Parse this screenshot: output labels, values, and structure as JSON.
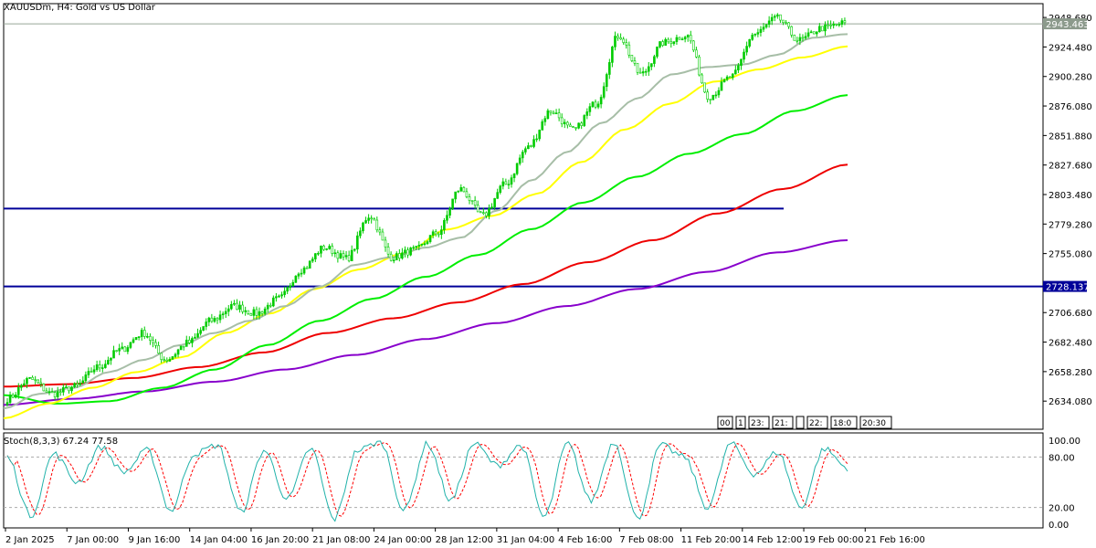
{
  "header": {
    "title": "XAUUSDm, H4:  Gold vs US Dollar"
  },
  "stoch": {
    "label": "Stoch(8,3,3) 67.24 77.58",
    "levels": [
      "100.00",
      "80.00",
      "20.00",
      "0.00"
    ]
  },
  "colors": {
    "up_candle": "#00cc00",
    "down_candle": "#00cc00",
    "ma_fast": "#a7bea7",
    "ma_yellow": "#ffff00",
    "ma_green": "#00ee00",
    "ma_red": "#ee0000",
    "ma_purple": "#8800cc",
    "hline": "#000099",
    "stoch_main": "#20b2aa",
    "stoch_signal": "#ff0000",
    "price_tag_bg": "#8c9a8c"
  },
  "time_scale_boxes": [
    "00",
    "1",
    "23:",
    "21:",
    "",
    "22:",
    "18:0",
    "20:30"
  ],
  "chart_data": {
    "type": "line",
    "symbol": "XAUUSDm",
    "timeframe": "H4",
    "y_ticks": [
      "2948.680",
      "2924.480",
      "2900.280",
      "2876.080",
      "2851.880",
      "2827.680",
      "2803.480",
      "2779.280",
      "2755.080",
      "2706.680",
      "2682.480",
      "2658.280",
      "2634.080"
    ],
    "ylim": [
      2611.0,
      2960.0
    ],
    "x_labels": [
      "2 Jan 2025",
      "7 Jan 00:00",
      "9 Jan 16:00",
      "14 Jan 04:00",
      "16 Jan 20:00",
      "21 Jan 08:00",
      "24 Jan 00:00",
      "28 Jan 12:00",
      "31 Jan 04:00",
      "4 Feb 16:00",
      "7 Feb 08:00",
      "11 Feb 20:00",
      "14 Feb 12:00",
      "19 Feb 00:00",
      "21 Feb 16:00"
    ],
    "current_price": "2943.463",
    "horizontal_lines": [
      {
        "price": 2792.0,
        "label": ""
      },
      {
        "price": 2728.137,
        "label": "2728.137"
      }
    ],
    "price_anchors": [
      2636,
      2652,
      2640,
      2646,
      2662,
      2676,
      2690,
      2668,
      2682,
      2700,
      2712,
      2706,
      2718,
      2742,
      2760,
      2751,
      2786,
      2752,
      2758,
      2772,
      2808,
      2786,
      2812,
      2842,
      2872,
      2856,
      2878,
      2934,
      2902,
      2928,
      2934,
      2884,
      2900,
      2935,
      2948,
      2930,
      2940,
      2944
    ],
    "ma_fast_anchors": [
      2628,
      2640,
      2645,
      2658,
      2668,
      2680,
      2690,
      2700,
      2712,
      2728,
      2746,
      2752,
      2760,
      2768,
      2790,
      2815,
      2838,
      2862,
      2882,
      2902,
      2908,
      2910,
      2918,
      2932,
      2935
    ],
    "ma_yellow_anchors": [
      2620,
      2632,
      2645,
      2658,
      2670,
      2690,
      2706,
      2726,
      2742,
      2755,
      2775,
      2786,
      2804,
      2830,
      2857,
      2878,
      2896,
      2906,
      2916,
      2925
    ],
    "ma_green_anchors": [
      2639,
      2632,
      2634,
      2645,
      2660,
      2680,
      2700,
      2718,
      2736,
      2754,
      2775,
      2797,
      2818,
      2837,
      2853,
      2872,
      2885
    ],
    "ma_red_anchors": [
      2646,
      2648,
      2653,
      2662,
      2674,
      2690,
      2702,
      2715,
      2730,
      2748,
      2766,
      2788,
      2808,
      2828
    ],
    "ma_purple_anchors": [
      2631,
      2636,
      2642,
      2650,
      2660,
      2672,
      2685,
      2698,
      2712,
      2726,
      2740,
      2756,
      2766
    ],
    "stoch_anchors": [
      80,
      10,
      84,
      50,
      92,
      62,
      88,
      16,
      84,
      94,
      14,
      88,
      30,
      90,
      6,
      88,
      98,
      16,
      96,
      28,
      96,
      70,
      94,
      8,
      96,
      28,
      98,
      6,
      94,
      80,
      20,
      96,
      60,
      86,
      20,
      90,
      67
    ],
    "grid": false,
    "legend": ""
  }
}
